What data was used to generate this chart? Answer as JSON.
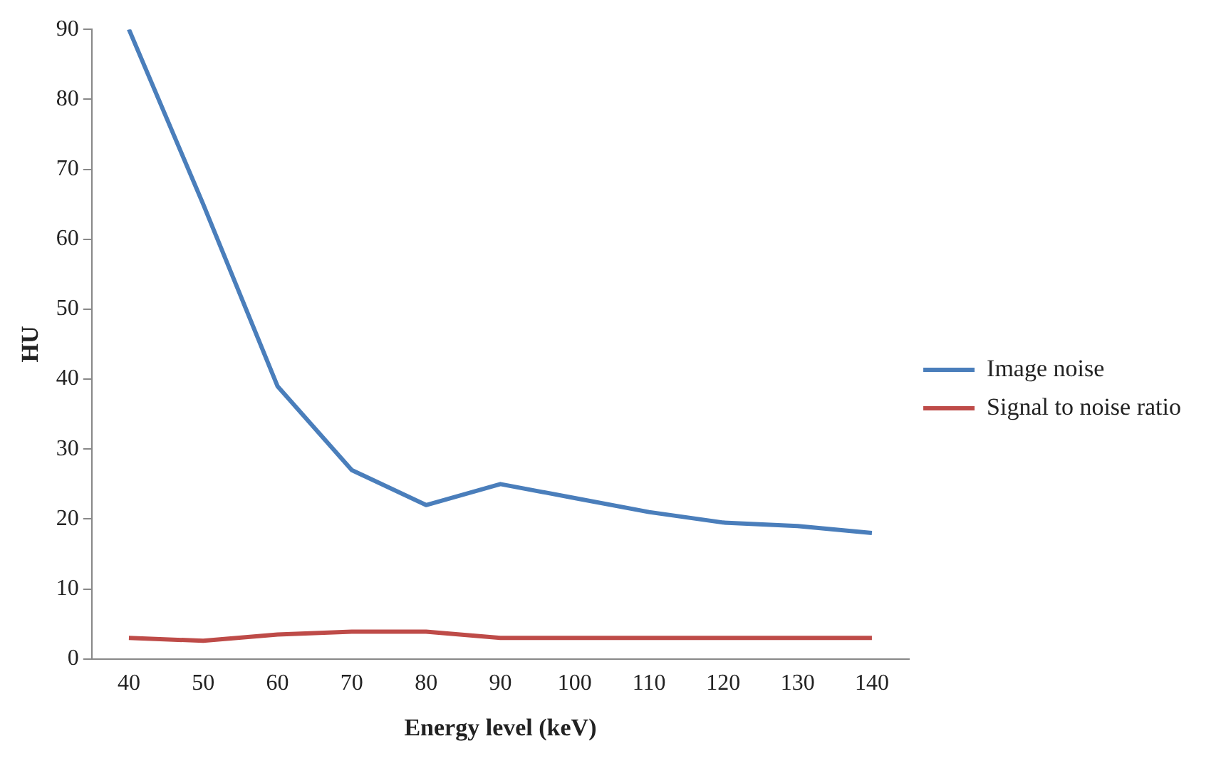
{
  "chart_data": {
    "type": "line",
    "xlabel": "Energy level (keV)",
    "ylabel": "HU",
    "categories": [
      "40",
      "50",
      "60",
      "70",
      "80",
      "90",
      "100",
      "110",
      "120",
      "130",
      "140"
    ],
    "series": [
      {
        "name": "Image noise",
        "color": "#4a7ebb",
        "values": [
          90,
          65,
          39,
          27,
          22,
          25,
          23,
          21,
          19.5,
          19,
          18
        ]
      },
      {
        "name": "Signal to noise ratio",
        "color": "#be4b48",
        "values": [
          3,
          2.6,
          3.5,
          3.9,
          3.9,
          3,
          3,
          3,
          3,
          3,
          3
        ]
      }
    ],
    "ylim": [
      0,
      90
    ],
    "yticks": [
      0,
      10,
      20,
      30,
      40,
      50,
      60,
      70,
      80,
      90
    ],
    "grid": false,
    "legend": "right",
    "marker": "none"
  }
}
